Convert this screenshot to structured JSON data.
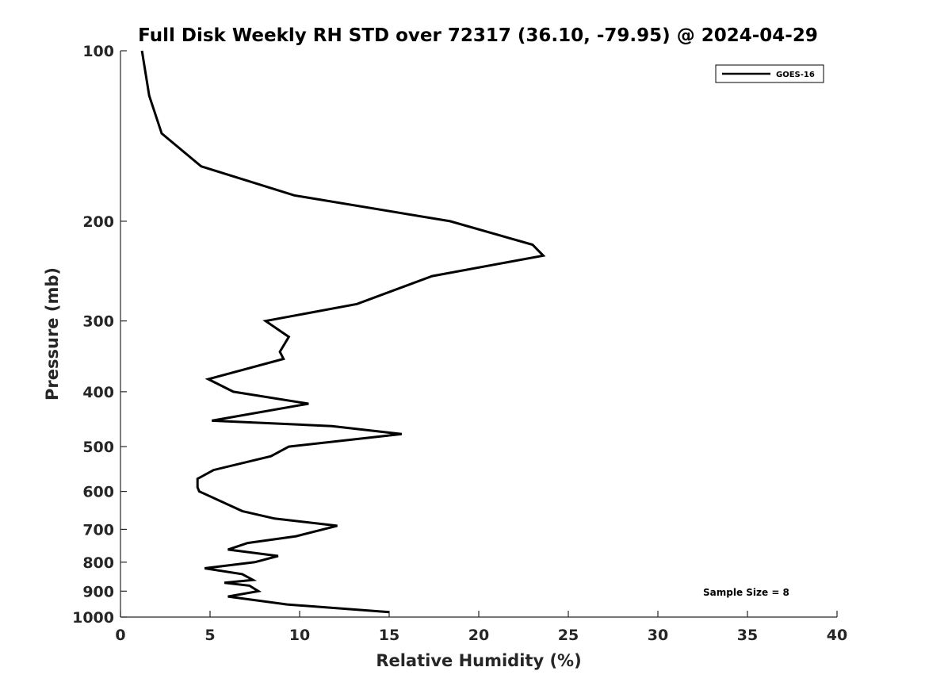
{
  "chart_data": {
    "type": "line",
    "title": "Full Disk Weekly RH STD over 72317 (36.10, -79.95) @ 2024-04-29",
    "xlabel": "Relative Humidity (%)",
    "ylabel": "Pressure (mb)",
    "xlim": [
      0,
      40
    ],
    "ylim": [
      100,
      1000
    ],
    "y_scale": "log",
    "y_reversed": true,
    "x_ticks": [
      0,
      5,
      10,
      15,
      20,
      25,
      30,
      35,
      40
    ],
    "y_ticks": [
      100,
      200,
      300,
      400,
      500,
      600,
      700,
      800,
      900,
      1000
    ],
    "grid": false,
    "legend_position": "top-right",
    "annotation": "Sample Size = 8",
    "series": [
      {
        "name": "GOES-16",
        "color": "#000000",
        "points": [
          [
            1.2,
            100
          ],
          [
            1.6,
            120
          ],
          [
            2.3,
            140
          ],
          [
            4.5,
            160
          ],
          [
            9.7,
            180
          ],
          [
            18.4,
            200
          ],
          [
            23.0,
            220
          ],
          [
            23.6,
            230
          ],
          [
            17.4,
            250
          ],
          [
            13.2,
            280
          ],
          [
            8.1,
            300
          ],
          [
            9.4,
            320
          ],
          [
            8.9,
            340
          ],
          [
            9.1,
            350
          ],
          [
            4.9,
            380
          ],
          [
            6.3,
            400
          ],
          [
            10.5,
            420
          ],
          [
            5.1,
            450
          ],
          [
            11.8,
            460
          ],
          [
            15.7,
            475
          ],
          [
            9.4,
            500
          ],
          [
            8.4,
            520
          ],
          [
            5.2,
            550
          ],
          [
            4.3,
            570
          ],
          [
            4.3,
            590
          ],
          [
            4.4,
            600
          ],
          [
            6.8,
            650
          ],
          [
            8.6,
            670
          ],
          [
            12.1,
            690
          ],
          [
            9.8,
            720
          ],
          [
            7.1,
            740
          ],
          [
            6.0,
            760
          ],
          [
            8.8,
            780
          ],
          [
            7.5,
            800
          ],
          [
            4.7,
            820
          ],
          [
            6.8,
            840
          ],
          [
            7.4,
            860
          ],
          [
            5.8,
            870
          ],
          [
            7.2,
            880
          ],
          [
            7.7,
            900
          ],
          [
            6.0,
            920
          ],
          [
            9.3,
            950
          ],
          [
            15.0,
            980
          ]
        ]
      }
    ]
  }
}
